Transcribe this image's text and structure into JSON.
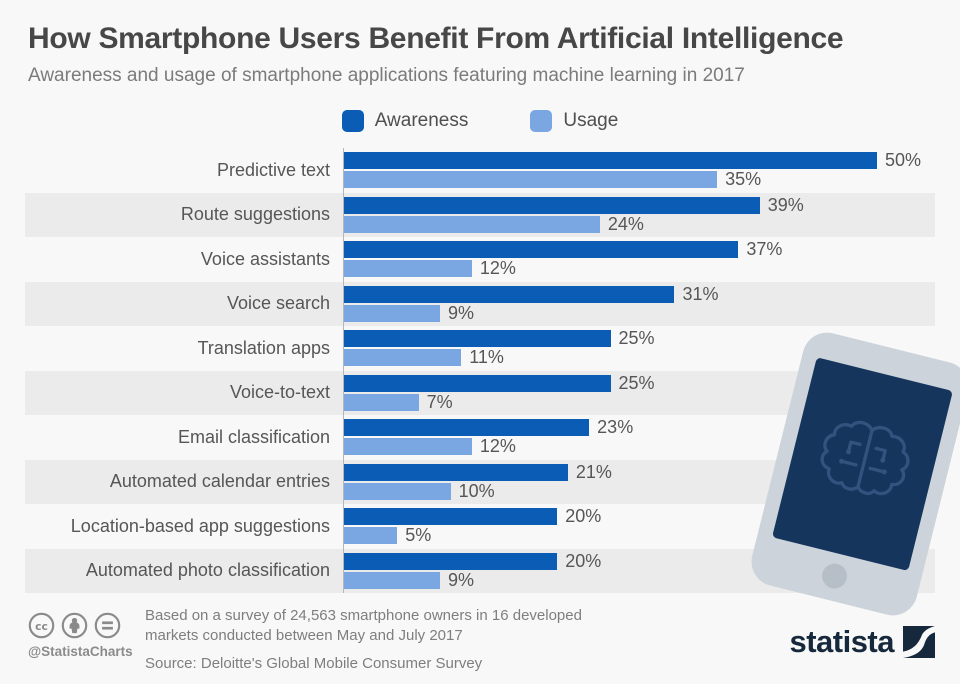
{
  "header": {
    "title": "How Smartphone Users Benefit From Artificial Intelligence",
    "subtitle": "Awareness and usage of smartphone applications featuring machine learning in 2017"
  },
  "chart_data": {
    "type": "bar",
    "orientation": "horizontal",
    "title": "How Smartphone Users Benefit From Artificial Intelligence",
    "subtitle": "Awareness and usage of smartphone applications featuring machine learning in 2017",
    "categories": [
      "Predictive text",
      "Route suggestions",
      "Voice assistants",
      "Voice search",
      "Translation apps",
      "Voice-to-text",
      "Email classification",
      "Automated calendar entries",
      "Location-based app suggestions",
      "Automated photo classification"
    ],
    "series": [
      {
        "name": "Awareness",
        "color": "#0a5cb4",
        "values": [
          50,
          39,
          37,
          31,
          25,
          25,
          23,
          21,
          20,
          20
        ]
      },
      {
        "name": "Usage",
        "color": "#7aa6e2",
        "values": [
          35,
          24,
          12,
          9,
          11,
          7,
          12,
          10,
          5,
          9
        ]
      }
    ],
    "value_suffix": "%",
    "xlim": [
      0,
      50
    ],
    "legend_position": "top-center",
    "grid": false,
    "row_striping": true
  },
  "footer": {
    "handle": "@StatistaCharts",
    "note_line1": "Based on a survey of 24,563 smartphone owners in 16 developed",
    "note_line2": "markets conducted between May and July 2017",
    "source": "Source: Deloitte's Global Mobile Consumer Survey",
    "brand": "statista"
  },
  "colors": {
    "page_bg": "#f8f8f8",
    "row_stripe": "#ebebeb",
    "awareness": "#0a5cb4",
    "usage": "#7aa6e2",
    "axis": "#b3b7bb",
    "brand_navy": "#16283c",
    "phone_body": "#ccd3da",
    "phone_screen": "#16355d",
    "brain_stroke": "#33527d"
  }
}
